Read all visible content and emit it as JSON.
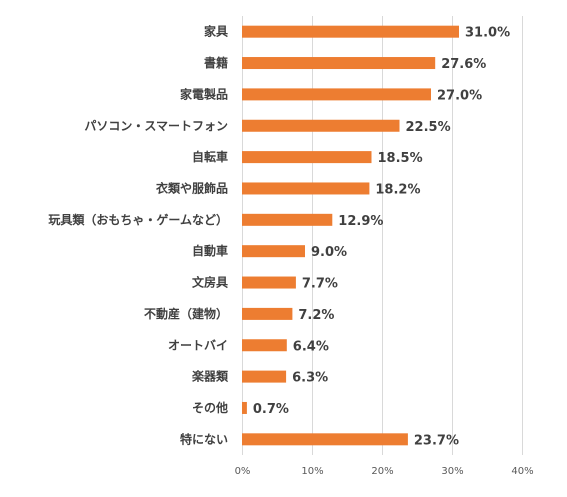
{
  "chart_data": {
    "type": "bar",
    "orientation": "horizontal",
    "categories": [
      "家具",
      "書籍",
      "家電製品",
      "パソコン・スマートフォン",
      "自転車",
      "衣類や服飾品",
      "玩具類（おもちゃ・ゲームなど）",
      "自動車",
      "文房具",
      "不動産（建物）",
      "オートバイ",
      "楽器類",
      "その他",
      "特にない"
    ],
    "values": [
      31.0,
      27.6,
      27.0,
      22.5,
      18.5,
      18.2,
      12.9,
      9.0,
      7.7,
      7.2,
      6.4,
      6.3,
      0.7,
      23.7
    ],
    "value_labels": [
      "31.0%",
      "27.6%",
      "27.0%",
      "22.5%",
      "18.5%",
      "18.2%",
      "12.9%",
      "9.0%",
      "7.7%",
      "7.2%",
      "6.4%",
      "6.3%",
      "0.7%",
      "23.7%"
    ],
    "xticks": [
      0,
      10,
      20,
      30,
      40
    ],
    "xtick_labels": [
      "0%",
      "10%",
      "20%",
      "30%",
      "40%"
    ],
    "xlim": [
      0,
      40
    ],
    "title": "",
    "xlabel": "",
    "ylabel": "",
    "grid": true,
    "legend": "none",
    "bar_color": "#ed7d31",
    "label_color": "#404040",
    "grid_color": "#d9d9d9"
  }
}
